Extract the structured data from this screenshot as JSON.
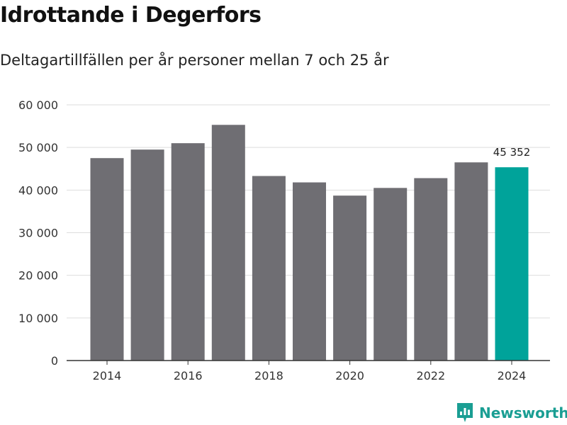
{
  "header": {
    "title": "Idrottande i Degerfors",
    "subtitle": "Deltagartillfällen per år personer mellan 7 och 25 år"
  },
  "branding": {
    "name": "Newsworthy",
    "logo_icon": "newsworthy-logo-icon",
    "color": "#1a9e93"
  },
  "colors": {
    "bar": "#6f6e73",
    "highlight": "#00a39a",
    "grid": "#dddddd",
    "axis": "#333333"
  },
  "chart_data": {
    "type": "bar",
    "title": "Idrottande i Degerfors",
    "subtitle": "Deltagartillfällen per år personer mellan 7 och 25 år",
    "x": [
      2014,
      2015,
      2016,
      2017,
      2018,
      2019,
      2020,
      2021,
      2022,
      2023,
      2024
    ],
    "values": [
      47500,
      49500,
      51000,
      55300,
      43300,
      41800,
      38700,
      40500,
      42800,
      46500,
      45352
    ],
    "highlight_index": 10,
    "data_labels": [
      {
        "index": 10,
        "text": "45 352"
      }
    ],
    "xticks": [
      "2014",
      "2016",
      "2018",
      "2020",
      "2022",
      "2024"
    ],
    "yticks": [
      "0",
      "10 000",
      "20 000",
      "30 000",
      "40 000",
      "50 000",
      "60 000"
    ],
    "ylim": [
      0,
      60000
    ],
    "grid": true,
    "legend": "none"
  }
}
